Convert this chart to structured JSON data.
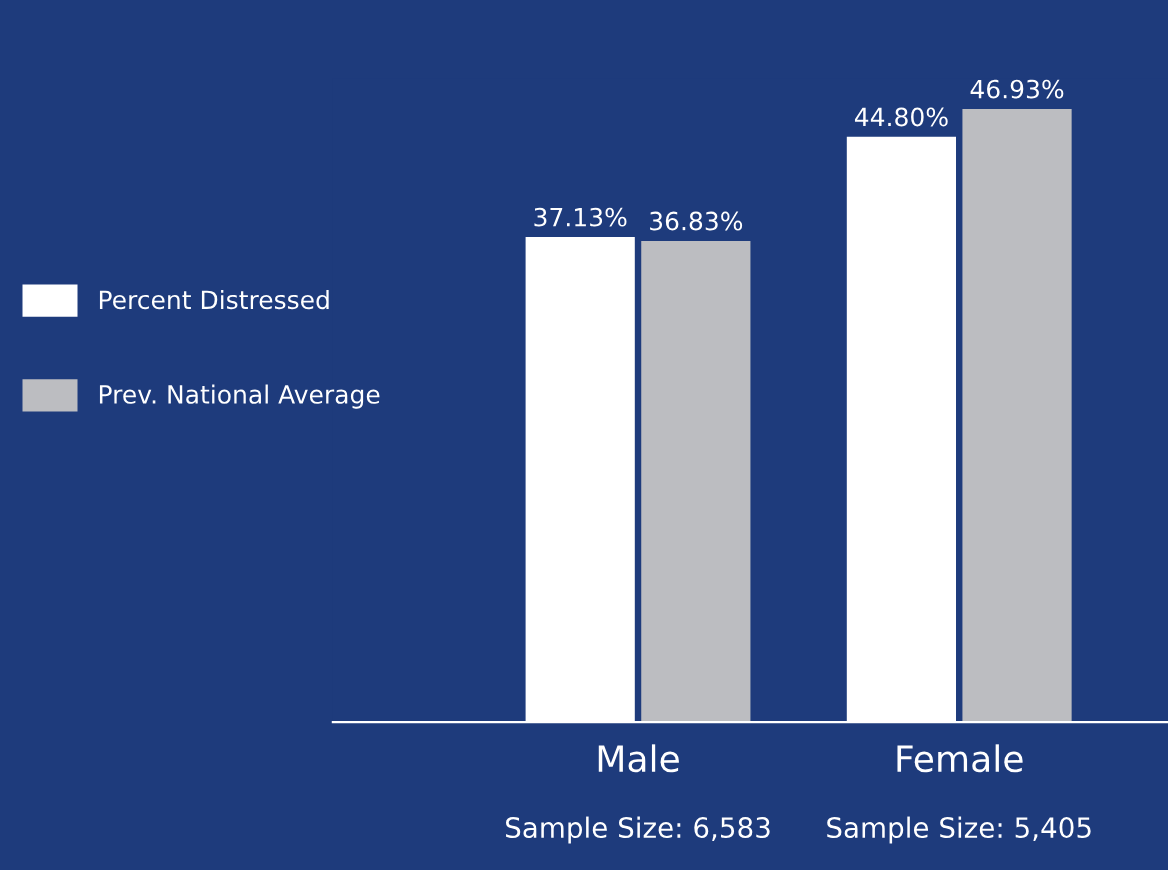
{
  "chart_data": {
    "type": "bar",
    "categories": [
      "Male",
      "Female"
    ],
    "series": [
      {
        "name": "Percent Distressed",
        "color": "#ffffff",
        "values": [
          37.13,
          44.8
        ],
        "value_labels": [
          "37.13%",
          "44.80%"
        ]
      },
      {
        "name": "Prev. National Average",
        "color": "#bcbdc1",
        "values": [
          36.83,
          46.93
        ],
        "value_labels": [
          "36.83%",
          "46.93%"
        ]
      }
    ],
    "annotations": [
      "Sample Size: 6,583",
      "Sample Size: 5,405"
    ],
    "legend": "left",
    "grid": false
  }
}
